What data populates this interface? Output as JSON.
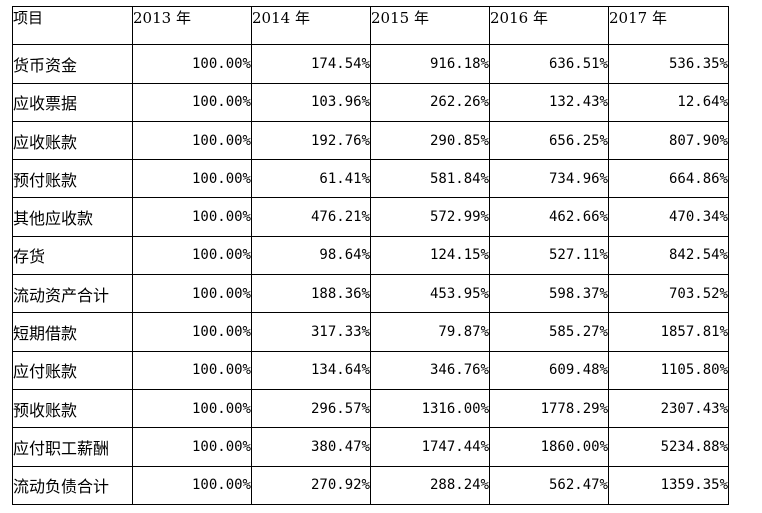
{
  "table": {
    "headers": [
      "项目",
      "2013 年",
      "2014 年",
      "2015 年",
      "2016 年",
      "2017 年"
    ],
    "rows": [
      {
        "label": "货币资金",
        "values": [
          "100.00%",
          "174.54%",
          "916.18%",
          "636.51%",
          "536.35%"
        ]
      },
      {
        "label": "应收票据",
        "values": [
          "100.00%",
          "103.96%",
          "262.26%",
          "132.43%",
          "12.64%"
        ]
      },
      {
        "label": "应收账款",
        "values": [
          "100.00%",
          "192.76%",
          "290.85%",
          "656.25%",
          "807.90%"
        ]
      },
      {
        "label": "预付账款",
        "values": [
          "100.00%",
          "61.41%",
          "581.84%",
          "734.96%",
          "664.86%"
        ]
      },
      {
        "label": "其他应收款",
        "values": [
          "100.00%",
          "476.21%",
          "572.99%",
          "462.66%",
          "470.34%"
        ]
      },
      {
        "label": "存货",
        "values": [
          "100.00%",
          "98.64%",
          "124.15%",
          "527.11%",
          "842.54%"
        ]
      },
      {
        "label": "流动资产合计",
        "values": [
          "100.00%",
          "188.36%",
          "453.95%",
          "598.37%",
          "703.52%"
        ]
      },
      {
        "label": "短期借款",
        "values": [
          "100.00%",
          "317.33%",
          "79.87%",
          "585.27%",
          "1857.81%"
        ]
      },
      {
        "label": "应付账款",
        "values": [
          "100.00%",
          "134.64%",
          "346.76%",
          "609.48%",
          "1105.80%"
        ]
      },
      {
        "label": "预收账款",
        "values": [
          "100.00%",
          "296.57%",
          "1316.00%",
          "1778.29%",
          "2307.43%"
        ]
      },
      {
        "label": "应付职工薪酬",
        "values": [
          "100.00%",
          "380.47%",
          "1747.44%",
          "1860.00%",
          "5234.88%"
        ]
      },
      {
        "label": "流动负债合计",
        "values": [
          "100.00%",
          "270.92%",
          "288.24%",
          "562.47%",
          "1359.35%"
        ]
      }
    ]
  }
}
